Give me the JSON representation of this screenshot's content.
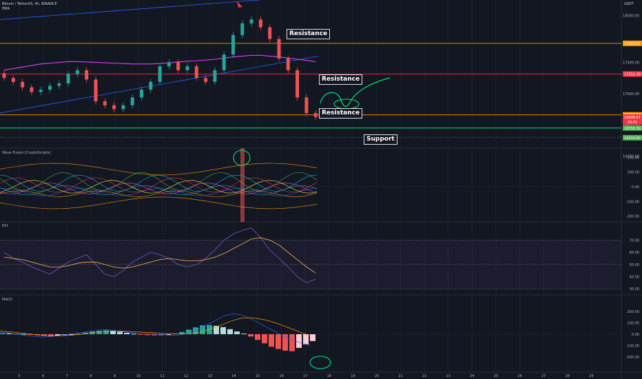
{
  "header": {
    "symbol_line": "Bitcoin / TetherUS, 4h, BINANCE",
    "indicator_label": "EMA",
    "currency": "USDT"
  },
  "panes": {
    "wave_title": "Wave Fusion [CryptoScripts]",
    "rsi_title": "RSI",
    "macd_title": "MACD"
  },
  "annotations": {
    "resistance_1": "Resistance",
    "resistance_2": "Resistance",
    "resistance_3": "Resistance",
    "support": "Support"
  },
  "price_scale": {
    "ticks": [
      "18000.00",
      "17400.00",
      "17000.00",
      "16600.00",
      "16200.00"
    ],
    "badges": [
      {
        "text": "17643.97",
        "color": "#ff9800"
      },
      {
        "text": "17251.39",
        "color": "#f23645"
      },
      {
        "text": "16726.94",
        "color": "#ff9800"
      },
      {
        "text": "16698.87",
        "color": "#f23645"
      },
      {
        "text": "39:01",
        "color": "#f23645"
      },
      {
        "text": "16558.39",
        "color": "#4caf50"
      },
      {
        "text": "16433.80",
        "color": "#4caf50"
      }
    ]
  },
  "wave_scale": [
    "200.00",
    "100.00",
    "0.00",
    "-100.00",
    "-200.00"
  ],
  "rsi_scale": [
    "70.00",
    "60.00",
    "50.00",
    "40.00",
    "30.00"
  ],
  "macd_scale": [
    "200.00",
    "100.00",
    "0.00",
    "-100.00",
    "-200.00"
  ],
  "time_axis": [
    "5",
    "6",
    "7",
    "8",
    "9",
    "10",
    "11",
    "12",
    "13",
    "14",
    "15",
    "16",
    "17",
    "18",
    "19",
    "20",
    "21",
    "22",
    "23",
    "24",
    "25",
    "26",
    "27",
    "28",
    "29"
  ],
  "colors": {
    "background": "#131722",
    "up": "#26a69a",
    "down": "#ef5350",
    "resistance_orange": "#ff9800",
    "resistance_red": "#f23645",
    "support_green": "#00e676",
    "channel_blue": "#2962ff",
    "ema_purple": "#e040fb",
    "drawing_green": "#00e676"
  },
  "chart_data": {
    "type": "candlestick",
    "symbol": "Bitcoin / TetherUS",
    "interval": "4h",
    "ylim": [
      16300,
      18200
    ],
    "candles_close_approx": [
      17200,
      17150,
      17080,
      17020,
      17050,
      17100,
      17130,
      17250,
      17300,
      17180,
      16900,
      16850,
      16800,
      16850,
      16950,
      17050,
      17150,
      17350,
      17400,
      17300,
      17350,
      17200,
      17150,
      17300,
      17500,
      17750,
      17900,
      17950,
      17850,
      17700,
      17450,
      17300,
      16950,
      16750,
      16700
    ],
    "horizontal_levels": [
      {
        "label": "Resistance",
        "value": 17643.97
      },
      {
        "label": "Resistance",
        "value": 17251.39
      },
      {
        "label": "Resistance",
        "value": 16726.94
      },
      {
        "label": "Support",
        "value": 16558.39
      }
    ],
    "rsi": {
      "ylim": [
        25,
        85
      ],
      "bands": [
        30,
        70
      ]
    },
    "macd": {
      "ylim": [
        -250,
        250
      ]
    }
  }
}
